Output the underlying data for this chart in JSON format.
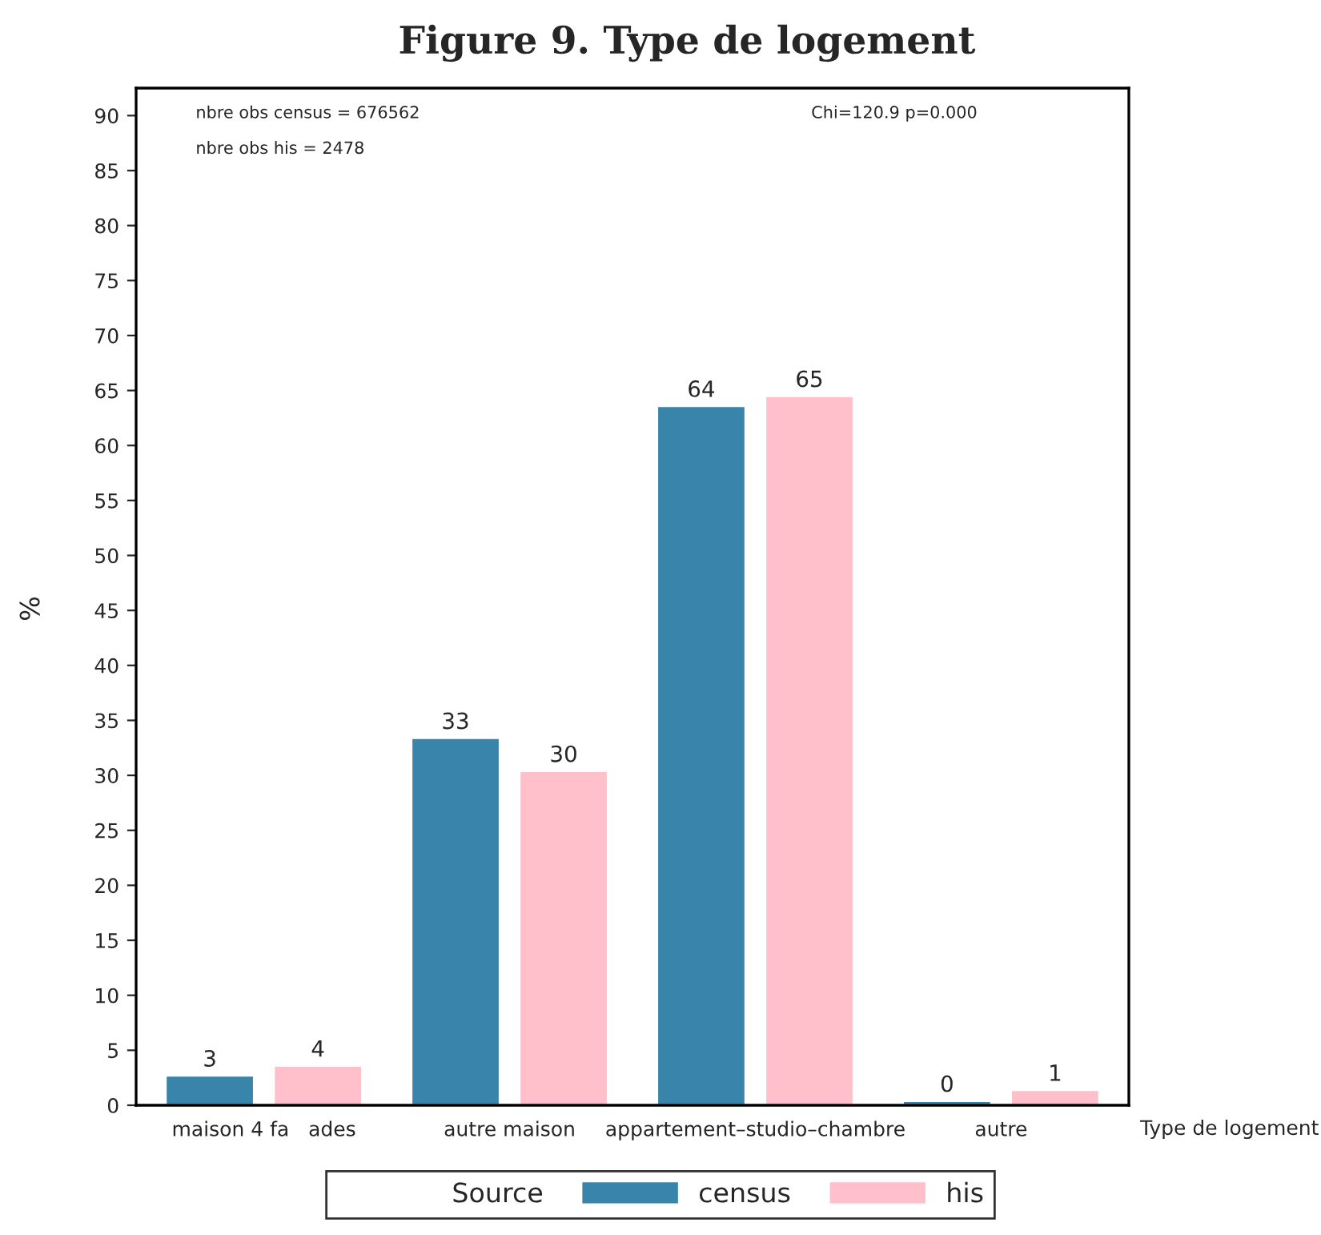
{
  "chart_data": {
    "type": "bar",
    "title": "Figure 9. Type de logement",
    "xlabel": "Type de logement",
    "ylabel": "%",
    "legend_title": "Source",
    "categories": [
      "maison 4 fa   ades",
      "autre maison",
      "appartement–studio–chambre",
      "autre"
    ],
    "series": [
      {
        "name": "census",
        "color": "#3884aa",
        "values": [
          2.7,
          33.4,
          63.6,
          0.4
        ],
        "value_labels": [
          "3",
          "33",
          "64",
          "0"
        ]
      },
      {
        "name": "his",
        "color": "#ffc0cb",
        "values": [
          3.6,
          30.4,
          64.5,
          1.4
        ],
        "value_labels": [
          "4",
          "30",
          "65",
          "1"
        ]
      }
    ],
    "ylim": [
      0,
      92.5
    ],
    "yticks": [
      0,
      5,
      10,
      15,
      20,
      25,
      30,
      35,
      40,
      45,
      50,
      55,
      60,
      65,
      70,
      75,
      80,
      85,
      90
    ],
    "annotations": [
      "nbre obs census = 676562",
      "nbre obs his = 2478",
      "Chi=120.9 p=0.000"
    ],
    "grid": false,
    "legend": "bottom"
  }
}
